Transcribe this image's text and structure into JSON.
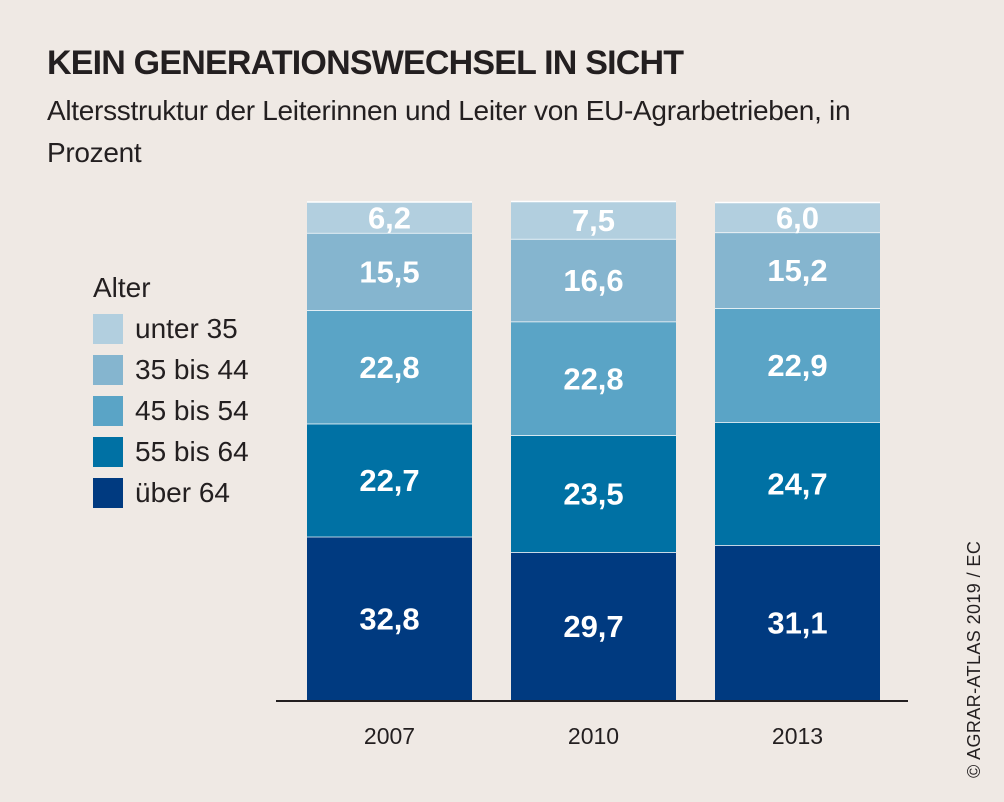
{
  "title": "KEIN GENERATIONSWECHSEL IN SICHT",
  "subtitle": "Altersstruktur der Leiterinnen und Leiter von EU-Agrarbetrieben, in Prozent",
  "legend": {
    "title": "Alter",
    "items": [
      "unter 35",
      "35 bis 44",
      "45 bis 54",
      "55 bis 64",
      "über 64"
    ]
  },
  "credit": "© AGRAR-ATLAS 2019 / EC",
  "colors": {
    "background": "#efe9e4",
    "bar_background": "#ffffff",
    "unter_35": "#b2cfdf",
    "35_bis_44": "#85b5cf",
    "45_bis_54": "#5aa4c6",
    "55_bis_64": "#0071a4",
    "ueber_64": "#003a80"
  },
  "chart_data": {
    "type": "bar",
    "stacked": true,
    "categories": [
      "2007",
      "2010",
      "2013"
    ],
    "ylim": [
      0,
      100
    ],
    "grid": false,
    "legend_position": "left",
    "series": [
      {
        "name": "über 64",
        "values": [
          32.8,
          29.7,
          31.1
        ],
        "labels": [
          "32,8",
          "29,7",
          "31,1"
        ],
        "color": "#003a80"
      },
      {
        "name": "55 bis 64",
        "values": [
          22.7,
          23.5,
          24.7
        ],
        "labels": [
          "22,7",
          "23,5",
          "24,7"
        ],
        "color": "#0071a4"
      },
      {
        "name": "45 bis 54",
        "values": [
          22.8,
          22.8,
          22.9
        ],
        "labels": [
          "22,8",
          "22,8",
          "22,9"
        ],
        "color": "#5aa4c6"
      },
      {
        "name": "35 bis 44",
        "values": [
          15.5,
          16.6,
          15.2
        ],
        "labels": [
          "15,5",
          "16,6",
          "15,2"
        ],
        "color": "#85b5cf"
      },
      {
        "name": "unter 35",
        "values": [
          6.2,
          7.5,
          6.0
        ],
        "labels": [
          "6,2",
          "7,5",
          "6,0"
        ],
        "color": "#b2cfdf"
      }
    ]
  }
}
